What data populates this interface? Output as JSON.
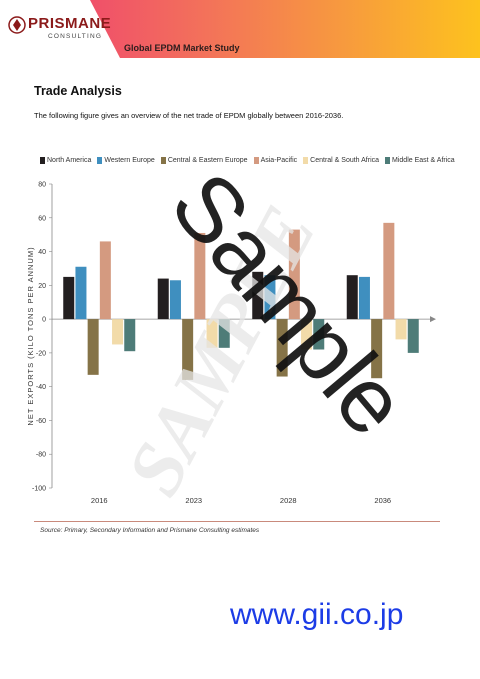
{
  "header": {
    "brand": "PRISMANE",
    "brand_sub": "CONSULTING",
    "study_title": "Global EPDM Market Study",
    "brand_color": "#8b1a1a"
  },
  "section": {
    "title": "Trade Analysis",
    "intro": "The following figure gives an overview of the net trade of EPDM globally between 2016-2036."
  },
  "chart_data": {
    "type": "bar",
    "title": "",
    "xlabel": "",
    "ylabel": "NET EXPORTS (KILO TONS PER ANNUM)",
    "ylim": [
      -100,
      80
    ],
    "yticks": [
      80,
      60,
      40,
      20,
      0,
      -20,
      -40,
      -60,
      -80,
      -100
    ],
    "categories": [
      "2016",
      "2023",
      "2028",
      "2036"
    ],
    "legend_position": "top",
    "grid": false,
    "series": [
      {
        "name": "North America",
        "color": "#231f20",
        "values": [
          25,
          24,
          28,
          26
        ]
      },
      {
        "name": "Western Europe",
        "color": "#3f8fbf",
        "values": [
          31,
          23,
          26,
          25
        ]
      },
      {
        "name": "Central & Eastern Europe",
        "color": "#857347",
        "values": [
          -33,
          -36,
          -34,
          -35
        ]
      },
      {
        "name": "Asia-Pacific",
        "color": "#d49a80",
        "values": [
          46,
          51,
          53,
          57
        ]
      },
      {
        "name": "Central & South Africa",
        "color": "#f2dba9",
        "values": [
          -15,
          -17,
          -18,
          -12
        ]
      },
      {
        "name": "Middle East & Africa",
        "color": "#4e7c78",
        "values": [
          -19,
          -17,
          -18,
          -20
        ]
      }
    ]
  },
  "source": "Source: Primary, Secondary Information and Prismane Consulting estimates",
  "watermarks": {
    "sample": "Sample",
    "sample_faded": "SAMPLE"
  },
  "footer": {
    "url": "www.gii.co.jp",
    "url_color": "#1c3ce6"
  }
}
